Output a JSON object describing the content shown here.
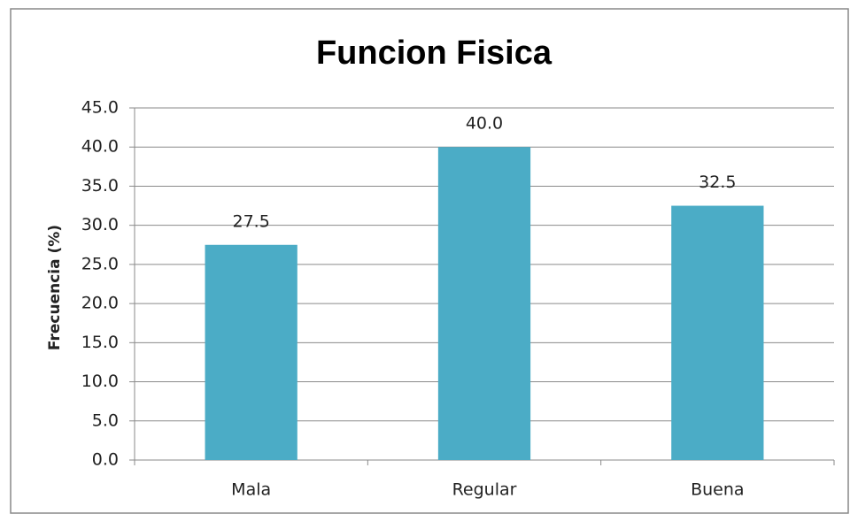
{
  "chart_data": {
    "type": "bar",
    "title": "Funcion Fisica",
    "y_label": "Frecuencia (%)",
    "categories": [
      "Mala",
      "Regular",
      "Buena"
    ],
    "values": [
      27.5,
      40.0,
      32.5
    ],
    "value_labels": [
      "27.5",
      "40.0",
      "32.5"
    ],
    "color": "#4bacc6",
    "ylim": [
      0,
      45
    ],
    "yticks": [
      {
        "value": 0,
        "label": "0.0"
      },
      {
        "value": 5,
        "label": "5.0"
      },
      {
        "value": 10,
        "label": "10.0"
      },
      {
        "value": 15,
        "label": "15.0"
      },
      {
        "value": 20,
        "label": "20.0"
      },
      {
        "value": 25,
        "label": "25.0"
      },
      {
        "value": 30,
        "label": "30.0"
      },
      {
        "value": 35,
        "label": "35.0"
      },
      {
        "value": 40,
        "label": "40.0"
      },
      {
        "value": 45,
        "label": "45.0"
      }
    ],
    "grid": true
  }
}
